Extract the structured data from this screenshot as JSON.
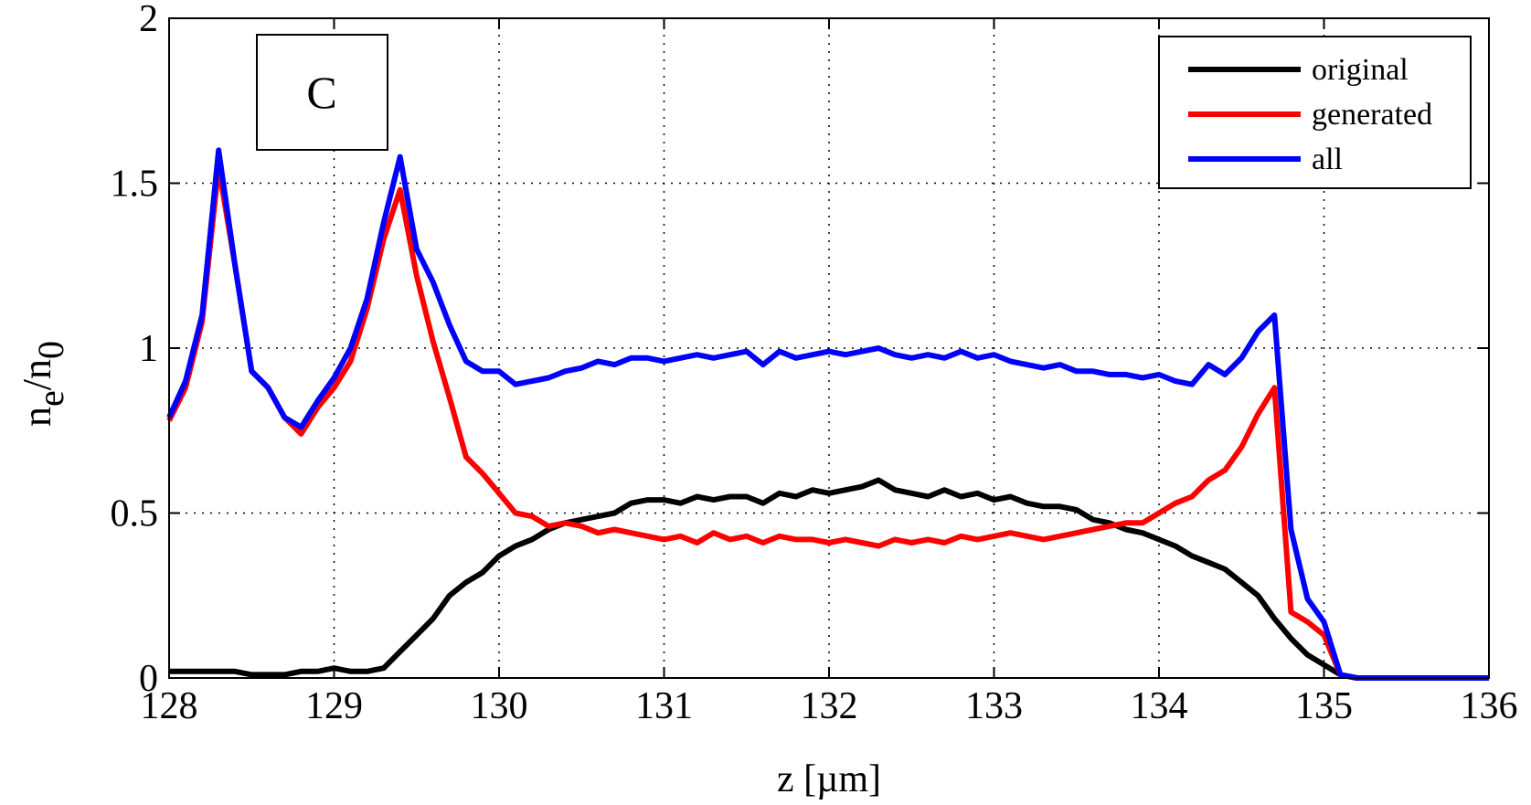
{
  "chart_data": {
    "type": "line",
    "xlabel": "z [µm]",
    "ylabel_parts": [
      "n",
      "e",
      "/n",
      "0"
    ],
    "annotation": "C",
    "legend": "upper right",
    "grid": true,
    "xlim": [
      128,
      136
    ],
    "xticks": [
      128,
      129,
      130,
      131,
      132,
      133,
      134,
      135,
      136
    ],
    "ylim": [
      0,
      2
    ],
    "yticks": [
      0,
      0.5,
      1,
      1.5,
      2
    ],
    "x": [
      128.0,
      128.1,
      128.2,
      128.3,
      128.4,
      128.5,
      128.6,
      128.7,
      128.8,
      128.9,
      129.0,
      129.1,
      129.2,
      129.3,
      129.4,
      129.5,
      129.6,
      129.7,
      129.8,
      129.9,
      130.0,
      130.1,
      130.2,
      130.3,
      130.4,
      130.5,
      130.6,
      130.7,
      130.8,
      130.9,
      131.0,
      131.1,
      131.2,
      131.3,
      131.4,
      131.5,
      131.6,
      131.7,
      131.8,
      131.9,
      132.0,
      132.1,
      132.2,
      132.3,
      132.4,
      132.5,
      132.6,
      132.7,
      132.8,
      132.9,
      133.0,
      133.1,
      133.2,
      133.3,
      133.4,
      133.5,
      133.6,
      133.7,
      133.8,
      133.9,
      134.0,
      134.1,
      134.2,
      134.3,
      134.4,
      134.5,
      134.6,
      134.7,
      134.8,
      134.9,
      135.0,
      135.1,
      135.2,
      135.3,
      135.4,
      135.5,
      135.6,
      135.7,
      135.8,
      135.9,
      136.0
    ],
    "series": [
      {
        "name": "original",
        "color": "#000000",
        "values": [
          0.02,
          0.02,
          0.02,
          0.02,
          0.02,
          0.01,
          0.01,
          0.01,
          0.02,
          0.02,
          0.03,
          0.02,
          0.02,
          0.03,
          0.08,
          0.13,
          0.18,
          0.25,
          0.29,
          0.32,
          0.37,
          0.4,
          0.42,
          0.45,
          0.47,
          0.48,
          0.49,
          0.5,
          0.53,
          0.54,
          0.54,
          0.53,
          0.55,
          0.54,
          0.55,
          0.55,
          0.53,
          0.56,
          0.55,
          0.57,
          0.56,
          0.57,
          0.58,
          0.6,
          0.57,
          0.56,
          0.55,
          0.57,
          0.55,
          0.56,
          0.54,
          0.55,
          0.53,
          0.52,
          0.52,
          0.51,
          0.48,
          0.47,
          0.45,
          0.44,
          0.42,
          0.4,
          0.37,
          0.35,
          0.33,
          0.29,
          0.25,
          0.18,
          0.12,
          0.07,
          0.04,
          0.01,
          0,
          0,
          0,
          0,
          0,
          0,
          0,
          0,
          0
        ]
      },
      {
        "name": "generated",
        "color": "#ff0000",
        "values": [
          0.78,
          0.88,
          1.08,
          1.55,
          1.25,
          0.93,
          0.88,
          0.79,
          0.74,
          0.82,
          0.88,
          0.96,
          1.12,
          1.33,
          1.48,
          1.22,
          1.02,
          0.85,
          0.67,
          0.62,
          0.56,
          0.5,
          0.49,
          0.46,
          0.47,
          0.46,
          0.44,
          0.45,
          0.44,
          0.43,
          0.42,
          0.43,
          0.41,
          0.44,
          0.42,
          0.43,
          0.41,
          0.43,
          0.42,
          0.42,
          0.41,
          0.42,
          0.41,
          0.4,
          0.42,
          0.41,
          0.42,
          0.41,
          0.43,
          0.42,
          0.43,
          0.44,
          0.43,
          0.42,
          0.43,
          0.44,
          0.45,
          0.46,
          0.47,
          0.47,
          0.5,
          0.53,
          0.55,
          0.6,
          0.63,
          0.7,
          0.8,
          0.88,
          0.2,
          0.17,
          0.13,
          0.01,
          0,
          0,
          0,
          0,
          0,
          0,
          0,
          0,
          0
        ]
      },
      {
        "name": "all",
        "color": "#0000ff",
        "values": [
          0.79,
          0.9,
          1.1,
          1.6,
          1.25,
          0.93,
          0.88,
          0.79,
          0.76,
          0.84,
          0.91,
          1.0,
          1.15,
          1.38,
          1.58,
          1.3,
          1.2,
          1.07,
          0.96,
          0.93,
          0.93,
          0.89,
          0.9,
          0.91,
          0.93,
          0.94,
          0.96,
          0.95,
          0.97,
          0.97,
          0.96,
          0.97,
          0.98,
          0.97,
          0.98,
          0.99,
          0.95,
          0.99,
          0.97,
          0.98,
          0.99,
          0.98,
          0.99,
          1.0,
          0.98,
          0.97,
          0.98,
          0.97,
          0.99,
          0.97,
          0.98,
          0.96,
          0.95,
          0.94,
          0.95,
          0.93,
          0.93,
          0.92,
          0.92,
          0.91,
          0.92,
          0.9,
          0.89,
          0.95,
          0.92,
          0.97,
          1.05,
          1.1,
          0.45,
          0.24,
          0.17,
          0.01,
          0,
          0,
          0,
          0,
          0,
          0,
          0,
          0,
          0
        ]
      }
    ]
  }
}
